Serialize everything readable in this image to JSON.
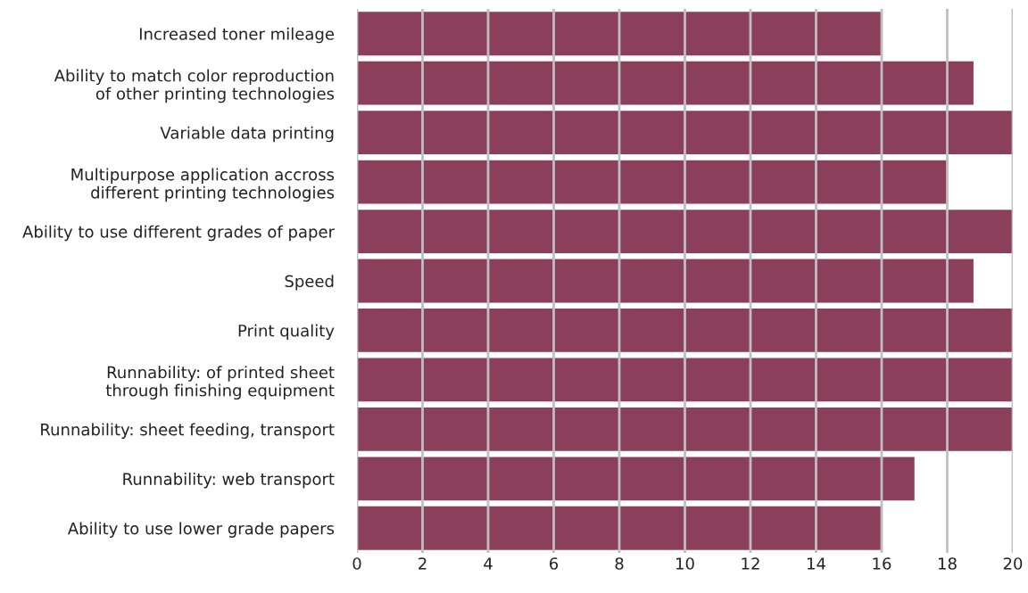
{
  "chart_data": {
    "type": "bar",
    "orientation": "horizontal",
    "categories": [
      "Increased toner mileage",
      "Ability to match color reproduction\nof other printing technologies",
      "Variable data printing",
      "Multipurpose application accross\ndifferent printing technologies",
      "Ability to use different grades of paper",
      "Speed",
      "Print quality",
      "Runnability: of printed sheet\nthrough finishing equipment",
      "Runnability: sheet feeding, transport",
      "Runnability: web transport",
      "Ability to use lower grade papers"
    ],
    "values": [
      16,
      18.8,
      20,
      18,
      20,
      18.8,
      20,
      20,
      20,
      17,
      16
    ],
    "color": "#8c3f5a",
    "xlim": [
      0,
      20
    ],
    "xticks": [
      0,
      2,
      4,
      6,
      8,
      10,
      12,
      14,
      16,
      18,
      20
    ],
    "grid": "x"
  }
}
